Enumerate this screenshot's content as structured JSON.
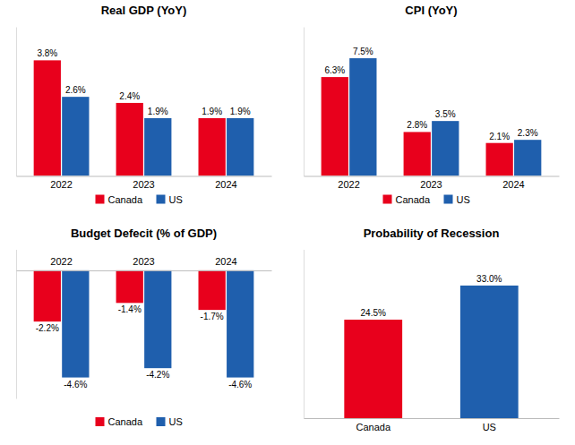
{
  "chart_data": [
    {
      "type": "bar",
      "title": "Real GDP  (YoY)",
      "categories": [
        "2022",
        "2023",
        "2024"
      ],
      "series": [
        {
          "name": "Canada",
          "color": "#e8001c",
          "values": [
            3.8,
            2.4,
            1.9
          ],
          "value_labels": [
            "3.8%",
            "2.4%",
            "1.9%"
          ]
        },
        {
          "name": "US",
          "color": "#1f5fad",
          "values": [
            2.6,
            1.9,
            1.9
          ],
          "value_labels": [
            "2.6%",
            "1.9%",
            "1.9%"
          ]
        }
      ],
      "ylim": [
        0,
        4.9
      ],
      "grid": false,
      "legend": "bottom",
      "data_labels": true,
      "tick_labels": "x"
    },
    {
      "type": "bar",
      "title": "CPI (YoY)",
      "categories": [
        "2022",
        "2023",
        "2024"
      ],
      "series": [
        {
          "name": "Canada",
          "color": "#e8001c",
          "values": [
            6.3,
            2.8,
            2.1
          ],
          "value_labels": [
            "6.3%",
            "2.8%",
            "2.1%"
          ]
        },
        {
          "name": "US",
          "color": "#1f5fad",
          "values": [
            7.5,
            3.5,
            2.3
          ],
          "value_labels": [
            "7.5%",
            "3.5%",
            "2.3%"
          ]
        }
      ],
      "ylim": [
        0,
        9.5
      ],
      "grid": false,
      "legend": "bottom",
      "data_labels": true,
      "tick_labels": "x"
    },
    {
      "type": "bar",
      "title": "Budget Defecit (% of GDP)",
      "categories": [
        "2022",
        "2023",
        "2024"
      ],
      "series": [
        {
          "name": "Canada",
          "color": "#e8001c",
          "values": [
            -2.2,
            -1.4,
            -1.7
          ],
          "value_labels": [
            "-2.2%",
            "-1.4%",
            "-1.7%"
          ]
        },
        {
          "name": "US",
          "color": "#1f5fad",
          "values": [
            -4.6,
            -4.2,
            -4.6
          ],
          "value_labels": [
            "-4.6%",
            "-4.2%",
            "-4.6%"
          ]
        }
      ],
      "ylim": [
        -5.5,
        0.9
      ],
      "grid": false,
      "legend": "bottom",
      "data_labels": true,
      "tick_labels": "x"
    },
    {
      "type": "bar",
      "title": "Probability of Recession",
      "categories": [
        "Canada",
        "US"
      ],
      "values": [
        24.5,
        33.0
      ],
      "value_labels": [
        "24.5%",
        "33.0%"
      ],
      "colors": [
        "#e8001c",
        "#1f5fad"
      ],
      "ylim": [
        0,
        42
      ],
      "grid": false,
      "data_labels": true,
      "tick_labels": "x"
    }
  ]
}
